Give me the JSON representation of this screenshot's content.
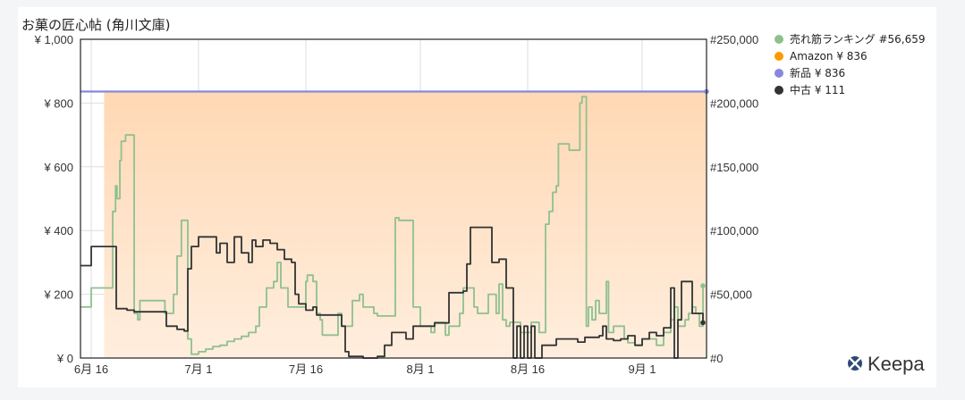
{
  "chart_data": {
    "type": "line",
    "title": "お菓の匠心帖 (角川文庫)",
    "left_axis": {
      "min": 0,
      "max": 1000,
      "ticks": [
        "¥ 0",
        "¥ 200",
        "¥ 400",
        "¥ 600",
        "¥ 800",
        "¥ 1,000"
      ],
      "tick_values": [
        0,
        200,
        400,
        600,
        800,
        1000
      ]
    },
    "right_axis": {
      "min": 0,
      "max": 250000,
      "ticks": [
        "#0",
        "#50,000",
        "#100,000",
        "#150,000",
        "#200,000",
        "#250,000"
      ],
      "tick_values": [
        0,
        50000,
        100000,
        150000,
        200000,
        250000
      ]
    },
    "x_axis": {
      "min": 0,
      "max": 86,
      "ticks": [
        {
          "label": "6月 16",
          "value": 0
        },
        {
          "label": "7月 1",
          "value": 15
        },
        {
          "label": "7月 16",
          "value": 30
        },
        {
          "label": "8月 1",
          "value": 46
        },
        {
          "label": "8月 16",
          "value": 61
        },
        {
          "label": "9月 1",
          "value": 77
        }
      ]
    },
    "grid": true,
    "legend_position": "right",
    "series": [
      {
        "name": "売れ筋ランキング",
        "label": "売れ筋ランキング #56,659",
        "axis": "right",
        "color": "#8fc08f",
        "type": "step",
        "points": [
          [
            -1.5,
            40000
          ],
          [
            0,
            55000
          ],
          [
            2.5,
            55000
          ],
          [
            3,
            115000
          ],
          [
            3.4,
            135000
          ],
          [
            3.6,
            125000
          ],
          [
            4,
            155000
          ],
          [
            4.2,
            170000
          ],
          [
            4.8,
            175000
          ],
          [
            5.8,
            175000
          ],
          [
            6,
            35000
          ],
          [
            6.5,
            30000
          ],
          [
            6.8,
            45000
          ],
          [
            10,
            45000
          ],
          [
            10.3,
            35000
          ],
          [
            11,
            35000
          ],
          [
            11.5,
            50000
          ],
          [
            12,
            80000
          ],
          [
            12.6,
            108000
          ],
          [
            13,
            108000
          ],
          [
            13.5,
            15000
          ],
          [
            14,
            3000
          ],
          [
            15,
            5000
          ],
          [
            16,
            7000
          ],
          [
            17,
            9000
          ],
          [
            18,
            10000
          ],
          [
            19,
            13000
          ],
          [
            20,
            15000
          ],
          [
            21,
            17000
          ],
          [
            22,
            20000
          ],
          [
            23,
            25000
          ],
          [
            23.5,
            40000
          ],
          [
            24.5,
            55000
          ],
          [
            25.5,
            60000
          ],
          [
            26,
            75000
          ],
          [
            26.5,
            55000
          ],
          [
            27.5,
            40000
          ],
          [
            28,
            40000
          ],
          [
            29,
            40000
          ],
          [
            29.5,
            40000
          ],
          [
            30,
            60000
          ],
          [
            30.2,
            65000
          ],
          [
            31,
            60000
          ],
          [
            31.5,
            35000
          ],
          [
            32,
            30000
          ],
          [
            32.3,
            18000
          ],
          [
            34,
            18000
          ],
          [
            34.5,
            35000
          ],
          [
            35,
            25000
          ],
          [
            36,
            25000
          ],
          [
            36.5,
            45000
          ],
          [
            37.5,
            50000
          ],
          [
            38,
            40000
          ],
          [
            39,
            40000
          ],
          [
            39.5,
            35000
          ],
          [
            40,
            33000
          ],
          [
            42,
            33000
          ],
          [
            42.5,
            110000
          ],
          [
            43,
            108000
          ],
          [
            44.5,
            108000
          ],
          [
            45,
            40000
          ],
          [
            46,
            25000
          ],
          [
            47.5,
            20000
          ],
          [
            48,
            28000
          ],
          [
            49,
            28000
          ],
          [
            49.5,
            18000
          ],
          [
            50,
            25000
          ],
          [
            51,
            25000
          ],
          [
            51.5,
            35000
          ],
          [
            52,
            55000
          ],
          [
            53,
            55000
          ],
          [
            53.5,
            40000
          ],
          [
            54,
            35000
          ],
          [
            55,
            35000
          ],
          [
            55.5,
            50000
          ],
          [
            56.3,
            50000
          ],
          [
            56.6,
            35000
          ],
          [
            57,
            58000
          ],
          [
            57.5,
            30000
          ],
          [
            58,
            25000
          ],
          [
            58.5,
            28000
          ],
          [
            59.5,
            28000
          ],
          [
            60,
            20000
          ],
          [
            61,
            20000
          ],
          [
            61.5,
            28000
          ],
          [
            62.3,
            28000
          ],
          [
            62.6,
            20000
          ],
          [
            63,
            20000
          ],
          [
            63.5,
            105000
          ],
          [
            64,
            115000
          ],
          [
            64.5,
            130000
          ],
          [
            65,
            135000
          ],
          [
            65.3,
            168000
          ],
          [
            66.5,
            168000
          ],
          [
            66.8,
            163000
          ],
          [
            68,
            163000
          ],
          [
            68.3,
            200000
          ],
          [
            68.6,
            205000
          ],
          [
            69,
            205000
          ],
          [
            69.2,
            25000
          ],
          [
            69.5,
            40000
          ],
          [
            70,
            30000
          ],
          [
            70.5,
            45000
          ],
          [
            71,
            35000
          ],
          [
            71.5,
            35000
          ],
          [
            72,
            60000
          ],
          [
            72.3,
            20000
          ],
          [
            73,
            25000
          ],
          [
            74,
            25000
          ],
          [
            74.5,
            15000
          ],
          [
            75,
            12000
          ],
          [
            76,
            10000
          ],
          [
            77,
            15000
          ],
          [
            78,
            15000
          ],
          [
            79,
            10000
          ],
          [
            80,
            20000
          ],
          [
            81,
            30000
          ],
          [
            81.5,
            40000
          ],
          [
            82,
            25000
          ],
          [
            83,
            30000
          ],
          [
            83.5,
            35000
          ],
          [
            84,
            40000
          ],
          [
            84.5,
            35000
          ],
          [
            85,
            25000
          ],
          [
            85.5,
            56659
          ]
        ]
      },
      {
        "name": "Amazon",
        "label": "Amazon ¥ 836",
        "axis": "left",
        "color": "#ff9900",
        "type": "step",
        "points": []
      },
      {
        "name": "新品",
        "label": "新品 ¥ 836",
        "axis": "left",
        "color": "#8888dd",
        "type": "step",
        "points": [
          [
            -1.5,
            836
          ],
          [
            86,
            836
          ]
        ]
      },
      {
        "name": "中古",
        "label": "中古 ¥ 111",
        "axis": "left",
        "color": "#333333",
        "type": "step",
        "points": [
          [
            -1.5,
            290
          ],
          [
            0,
            350
          ],
          [
            3,
            350
          ],
          [
            3.5,
            155
          ],
          [
            5,
            150
          ],
          [
            6,
            145
          ],
          [
            10,
            145
          ],
          [
            10.5,
            100
          ],
          [
            12,
            90
          ],
          [
            13,
            85
          ],
          [
            13.5,
            280
          ],
          [
            14,
            350
          ],
          [
            15,
            380
          ],
          [
            17,
            380
          ],
          [
            17.5,
            330
          ],
          [
            18,
            360
          ],
          [
            19,
            300
          ],
          [
            20,
            380
          ],
          [
            21,
            330
          ],
          [
            22,
            300
          ],
          [
            22.5,
            370
          ],
          [
            23,
            350
          ],
          [
            24,
            370
          ],
          [
            25,
            360
          ],
          [
            26,
            340
          ],
          [
            27,
            310
          ],
          [
            28,
            300
          ],
          [
            28.5,
            200
          ],
          [
            29,
            170
          ],
          [
            30,
            150
          ],
          [
            31,
            160
          ],
          [
            31.5,
            135
          ],
          [
            35,
            100
          ],
          [
            35.5,
            20
          ],
          [
            36,
            5
          ],
          [
            37,
            5
          ],
          [
            38,
            0
          ],
          [
            39,
            0
          ],
          [
            40,
            5
          ],
          [
            41,
            40
          ],
          [
            42,
            80
          ],
          [
            44,
            60
          ],
          [
            45,
            100
          ],
          [
            48,
            110
          ],
          [
            50,
            205
          ],
          [
            52,
            210
          ],
          [
            52.5,
            295
          ],
          [
            53,
            410
          ],
          [
            55.5,
            410
          ],
          [
            56,
            300
          ],
          [
            57,
            310
          ],
          [
            58,
            220
          ],
          [
            59,
            0
          ],
          [
            59.5,
            100
          ],
          [
            60,
            0
          ],
          [
            60.5,
            100
          ],
          [
            61,
            0
          ],
          [
            61.5,
            100
          ],
          [
            62,
            0
          ],
          [
            63,
            40
          ],
          [
            65,
            60
          ],
          [
            67,
            60
          ],
          [
            68,
            50
          ],
          [
            69,
            65
          ],
          [
            70,
            65
          ],
          [
            71,
            70
          ],
          [
            71.5,
            100
          ],
          [
            72,
            60
          ],
          [
            73,
            55
          ],
          [
            74,
            60
          ],
          [
            75,
            70
          ],
          [
            76,
            40
          ],
          [
            77,
            60
          ],
          [
            78,
            80
          ],
          [
            79,
            70
          ],
          [
            80,
            95
          ],
          [
            81,
            220
          ],
          [
            81.5,
            0
          ],
          [
            82,
            120
          ],
          [
            82.5,
            240
          ],
          [
            83.5,
            240
          ],
          [
            84,
            140
          ],
          [
            85,
            140
          ],
          [
            85.5,
            111
          ]
        ]
      }
    ],
    "shaded_region": {
      "axis": "left",
      "from_x": 1.8,
      "to_x": 86,
      "y": 836,
      "color": "#ffd8b4"
    }
  },
  "brand": {
    "name": "Keepa",
    "icon": "keepa-logo-icon"
  }
}
